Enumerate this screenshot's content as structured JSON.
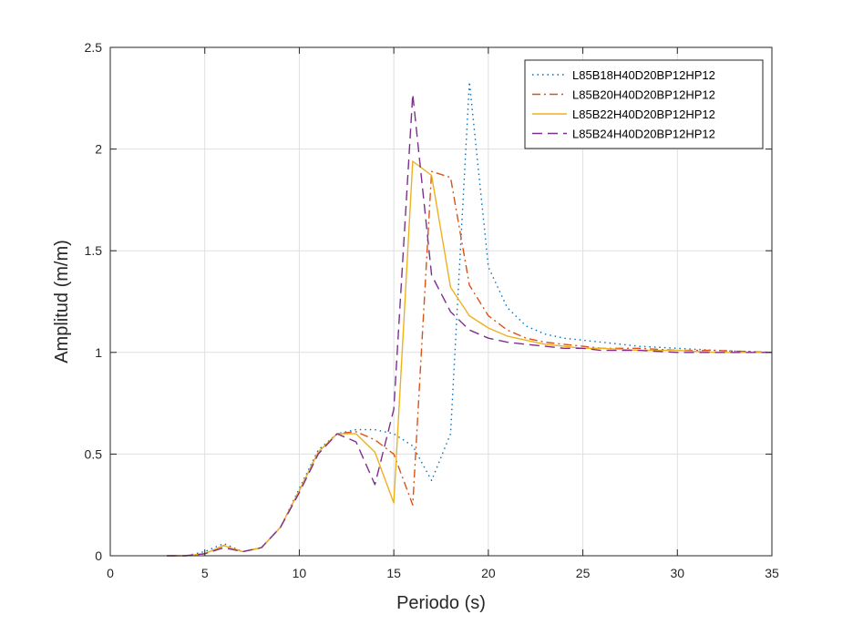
{
  "chart_data": {
    "type": "line",
    "title": "",
    "xlabel": "Periodo (s)",
    "ylabel": "Amplitud (m/m)",
    "xlim": [
      0,
      35
    ],
    "ylim": [
      0,
      2.5
    ],
    "xticks": [
      0,
      5,
      10,
      15,
      20,
      25,
      30,
      35
    ],
    "yticks": [
      0,
      0.5,
      1,
      1.5,
      2,
      2.5
    ],
    "xtick_labels": [
      "0",
      "5",
      "10",
      "15",
      "20",
      "25",
      "30",
      "35"
    ],
    "ytick_labels": [
      "0",
      "0.5",
      "1",
      "1.5",
      "2",
      "2.5"
    ],
    "grid": true,
    "legend_position": "top-right",
    "series": [
      {
        "name": "L85B18H40D20BP12HP12",
        "color": "#0072BD",
        "dash": "dotted",
        "x": [
          3,
          4,
          5,
          6,
          7,
          8,
          9,
          10,
          11,
          12,
          13,
          14,
          15,
          16,
          17,
          18,
          19,
          20,
          21,
          22,
          23,
          24,
          25,
          26,
          28,
          30,
          32,
          35
        ],
        "y": [
          0,
          0,
          0.02,
          0.06,
          0.02,
          0.04,
          0.14,
          0.33,
          0.52,
          0.6,
          0.62,
          0.62,
          0.6,
          0.54,
          0.37,
          0.6,
          2.33,
          1.42,
          1.22,
          1.13,
          1.09,
          1.07,
          1.06,
          1.05,
          1.03,
          1.02,
          1.01,
          1.0
        ]
      },
      {
        "name": "L85B20H40D20BP12HP12",
        "color": "#D95319",
        "dash": "dashdot",
        "x": [
          3,
          4,
          5,
          6,
          7,
          8,
          9,
          10,
          11,
          12,
          13,
          14,
          15,
          16,
          17,
          18,
          19,
          20,
          21,
          22,
          23,
          24,
          25,
          26,
          28,
          30,
          32,
          35
        ],
        "y": [
          0,
          0,
          0.01,
          0.05,
          0.02,
          0.04,
          0.14,
          0.32,
          0.51,
          0.6,
          0.61,
          0.57,
          0.5,
          0.25,
          1.89,
          1.86,
          1.33,
          1.18,
          1.11,
          1.07,
          1.05,
          1.04,
          1.03,
          1.02,
          1.02,
          1.01,
          1.01,
          1.0
        ]
      },
      {
        "name": "L85B22H40D20BP12HP12",
        "color": "#EDB120",
        "dash": "solid",
        "x": [
          3,
          4,
          5,
          6,
          7,
          8,
          9,
          10,
          11,
          12,
          13,
          14,
          15,
          16,
          17,
          18,
          19,
          20,
          21,
          22,
          23,
          24,
          25,
          26,
          28,
          30,
          32,
          35
        ],
        "y": [
          0,
          0,
          0.01,
          0.05,
          0.02,
          0.04,
          0.14,
          0.32,
          0.51,
          0.6,
          0.6,
          0.51,
          0.26,
          1.94,
          1.87,
          1.32,
          1.18,
          1.12,
          1.08,
          1.06,
          1.04,
          1.03,
          1.02,
          1.02,
          1.01,
          1.01,
          1.0,
          1.0
        ]
      },
      {
        "name": "L85B24H40D20BP12HP12",
        "color": "#7E2F8E",
        "dash": "dashed",
        "x": [
          3,
          4,
          5,
          6,
          7,
          8,
          9,
          10,
          11,
          12,
          13,
          14,
          15,
          16,
          17,
          18,
          19,
          20,
          21,
          22,
          23,
          24,
          25,
          26,
          28,
          30,
          32,
          35
        ],
        "y": [
          0,
          0,
          0.01,
          0.04,
          0.02,
          0.04,
          0.14,
          0.31,
          0.5,
          0.6,
          0.56,
          0.35,
          0.72,
          2.27,
          1.38,
          1.2,
          1.11,
          1.07,
          1.05,
          1.04,
          1.03,
          1.02,
          1.02,
          1.01,
          1.01,
          1.0,
          1.0,
          1.0
        ]
      }
    ]
  }
}
